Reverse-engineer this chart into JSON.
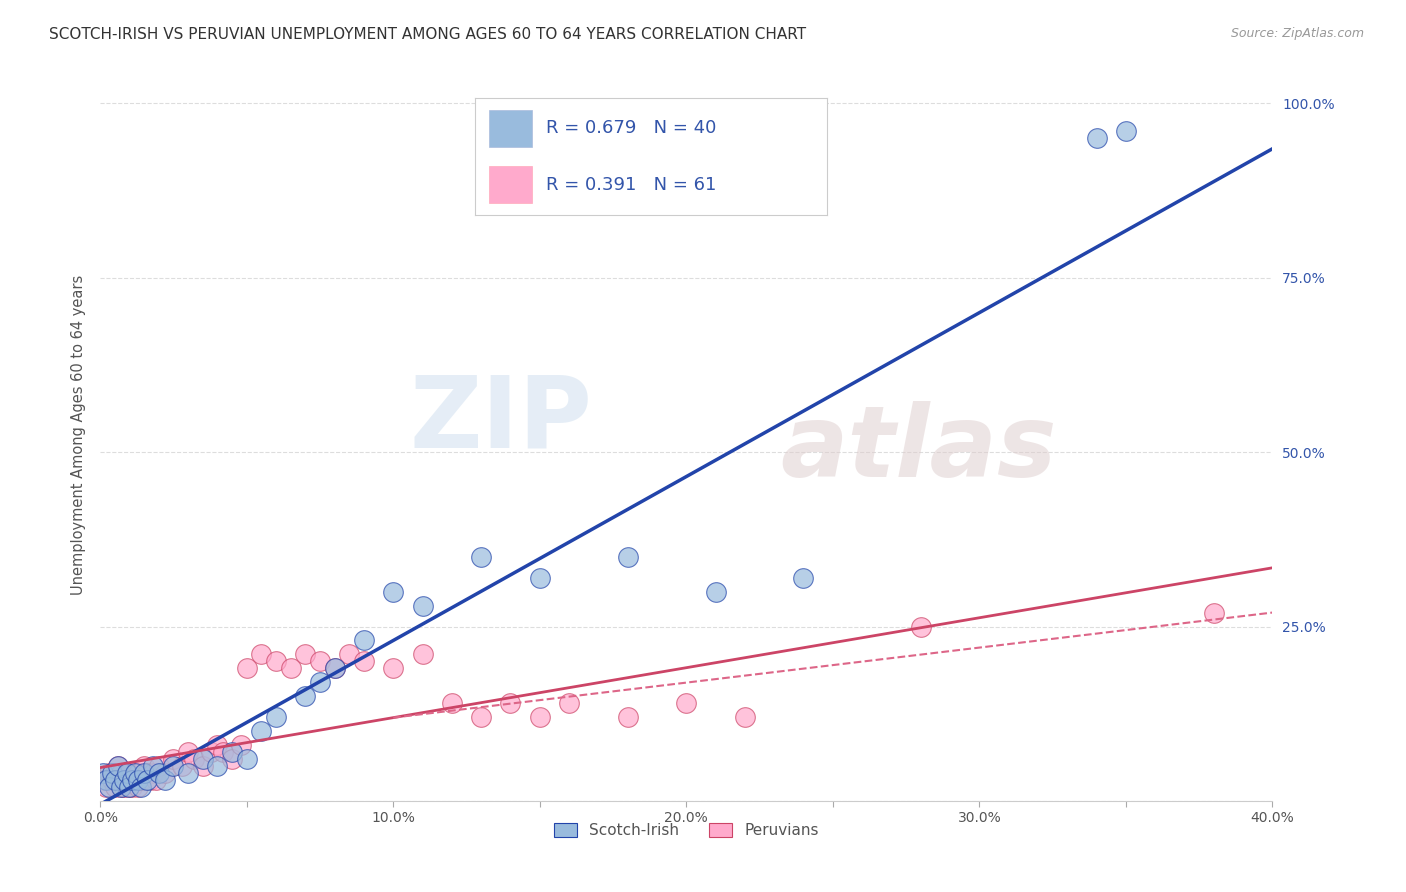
{
  "title": "SCOTCH-IRISH VS PERUVIAN UNEMPLOYMENT AMONG AGES 60 TO 64 YEARS CORRELATION CHART",
  "source": "Source: ZipAtlas.com",
  "ylabel": "Unemployment Among Ages 60 to 64 years",
  "xlim": [
    0.0,
    0.4
  ],
  "ylim": [
    0.0,
    1.05
  ],
  "xticks": [
    0.0,
    0.05,
    0.1,
    0.15,
    0.2,
    0.25,
    0.3,
    0.35,
    0.4
  ],
  "xtick_labels": [
    "0.0%",
    "",
    "10.0%",
    "",
    "20.0%",
    "",
    "30.0%",
    "",
    "40.0%"
  ],
  "yticks": [
    0.0,
    0.25,
    0.5,
    0.75,
    1.0
  ],
  "ytick_labels": [
    "",
    "25.0%",
    "50.0%",
    "75.0%",
    "100.0%"
  ],
  "scotch_irish_color": "#99BBDD",
  "peruvian_color": "#FFAACC",
  "scotch_irish_line_color": "#2244AA",
  "peruvian_solid_line_color": "#CC4466",
  "peruvian_dashed_line_color": "#DD6688",
  "legend_label_1": "Scotch-Irish",
  "legend_label_2": "Peruvians",
  "R1": 0.679,
  "N1": 40,
  "R2": 0.391,
  "N2": 61,
  "scotch_irish_x": [
    0.001,
    0.002,
    0.003,
    0.004,
    0.005,
    0.006,
    0.007,
    0.008,
    0.009,
    0.01,
    0.011,
    0.012,
    0.013,
    0.014,
    0.015,
    0.016,
    0.018,
    0.02,
    0.022,
    0.025,
    0.03,
    0.035,
    0.04,
    0.045,
    0.05,
    0.055,
    0.06,
    0.07,
    0.075,
    0.08,
    0.09,
    0.1,
    0.11,
    0.13,
    0.15,
    0.18,
    0.21,
    0.24,
    0.34,
    0.35
  ],
  "scotch_irish_y": [
    0.04,
    0.03,
    0.02,
    0.04,
    0.03,
    0.05,
    0.02,
    0.03,
    0.04,
    0.02,
    0.03,
    0.04,
    0.03,
    0.02,
    0.04,
    0.03,
    0.05,
    0.04,
    0.03,
    0.05,
    0.04,
    0.06,
    0.05,
    0.07,
    0.06,
    0.1,
    0.12,
    0.15,
    0.17,
    0.19,
    0.23,
    0.3,
    0.28,
    0.35,
    0.32,
    0.35,
    0.3,
    0.32,
    0.95,
    0.96
  ],
  "peruvian_x": [
    0.001,
    0.002,
    0.003,
    0.004,
    0.005,
    0.005,
    0.006,
    0.006,
    0.007,
    0.007,
    0.008,
    0.008,
    0.009,
    0.009,
    0.01,
    0.01,
    0.011,
    0.011,
    0.012,
    0.012,
    0.013,
    0.013,
    0.014,
    0.015,
    0.016,
    0.017,
    0.018,
    0.019,
    0.02,
    0.022,
    0.025,
    0.028,
    0.03,
    0.032,
    0.035,
    0.038,
    0.04,
    0.042,
    0.045,
    0.048,
    0.05,
    0.055,
    0.06,
    0.065,
    0.07,
    0.075,
    0.08,
    0.085,
    0.09,
    0.1,
    0.11,
    0.12,
    0.13,
    0.14,
    0.15,
    0.16,
    0.18,
    0.2,
    0.22,
    0.28,
    0.38
  ],
  "peruvian_y": [
    0.03,
    0.02,
    0.04,
    0.03,
    0.02,
    0.04,
    0.03,
    0.05,
    0.02,
    0.04,
    0.03,
    0.02,
    0.04,
    0.03,
    0.02,
    0.04,
    0.03,
    0.02,
    0.04,
    0.03,
    0.02,
    0.04,
    0.03,
    0.05,
    0.04,
    0.03,
    0.04,
    0.03,
    0.05,
    0.04,
    0.06,
    0.05,
    0.07,
    0.06,
    0.05,
    0.07,
    0.08,
    0.07,
    0.06,
    0.08,
    0.19,
    0.21,
    0.2,
    0.19,
    0.21,
    0.2,
    0.19,
    0.21,
    0.2,
    0.19,
    0.21,
    0.14,
    0.12,
    0.14,
    0.12,
    0.14,
    0.12,
    0.14,
    0.12,
    0.25,
    0.27
  ],
  "watermark_zip": "ZIP",
  "watermark_atlas": "atlas",
  "background_color": "#FFFFFF",
  "grid_color": "#DDDDDD",
  "tick_color": "#AAAAAA",
  "text_color": "#3355AA"
}
